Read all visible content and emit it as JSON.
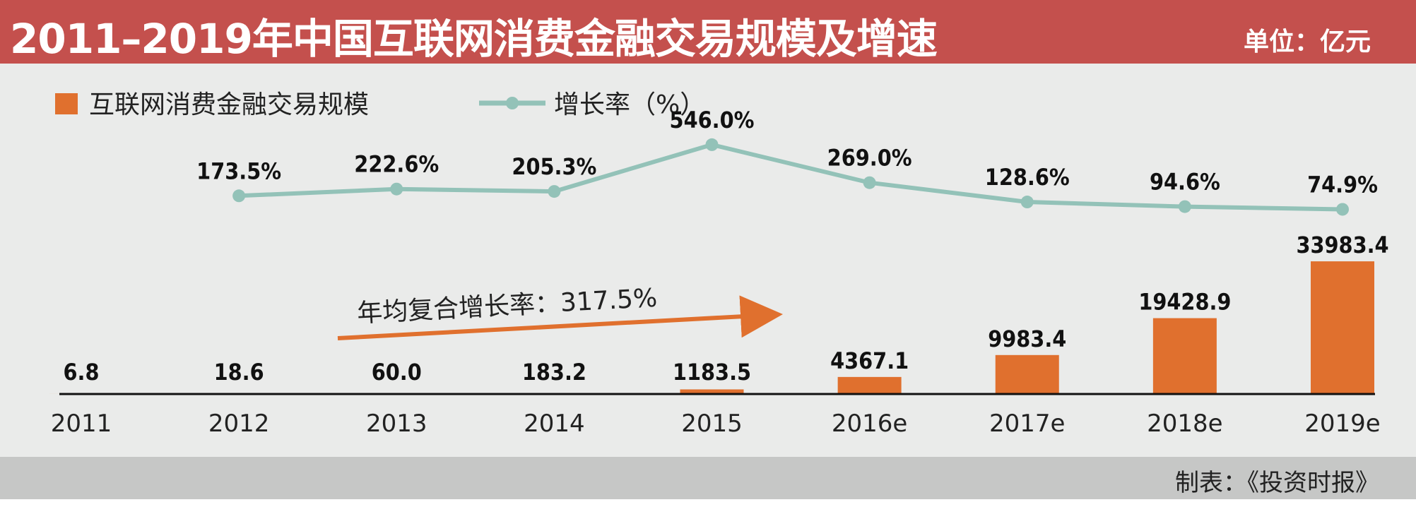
{
  "header": {
    "title": "2011–2019年中国互联网消费金融交易规模及增速",
    "unit": "单位：亿元"
  },
  "footer": {
    "source": "制表：《投资时报》"
  },
  "colors": {
    "header_bg": "#c4504d",
    "bar": "#e0702e",
    "line": "#93c2b8",
    "plot_bg": "#eaebea",
    "footer_bg": "#c6c7c6"
  },
  "chart_data": {
    "type": "bar",
    "title": "2011–2019年中国互联网消费金融交易规模及增速",
    "categories": [
      "2011",
      "2012",
      "2013",
      "2014",
      "2015",
      "2016e",
      "2017e",
      "2018e",
      "2019e"
    ],
    "series": [
      {
        "name": "互联网消费金融交易规模",
        "kind": "bar",
        "values": [
          6.8,
          18.6,
          60.0,
          183.2,
          1183.5,
          4367.1,
          9983.4,
          19428.9,
          33983.4
        ],
        "labels": [
          "6.8",
          "18.6",
          "60.0",
          "183.2",
          "1183.5",
          "4367.1",
          "9983.4",
          "19428.9",
          "33983.4"
        ]
      },
      {
        "name": "增长率（%）",
        "kind": "line",
        "values": [
          null,
          173.5,
          222.6,
          205.3,
          546.0,
          269.0,
          128.6,
          94.6,
          74.9
        ],
        "labels": [
          "",
          "173.5%",
          "222.6%",
          "205.3%",
          "546.0%",
          "269.0%",
          "128.6%",
          "94.6%",
          "74.9%"
        ]
      }
    ],
    "bar_ylim": [
      0,
      34000
    ],
    "line_ylim": [
      0,
      600
    ],
    "annotation": "年均复合增长率：317.5%",
    "legend": [
      "互联网消费金融交易规模",
      "增长率（%）"
    ],
    "legend_position": "top-left",
    "grid": false,
    "xlabel": "",
    "ylabel": ""
  }
}
